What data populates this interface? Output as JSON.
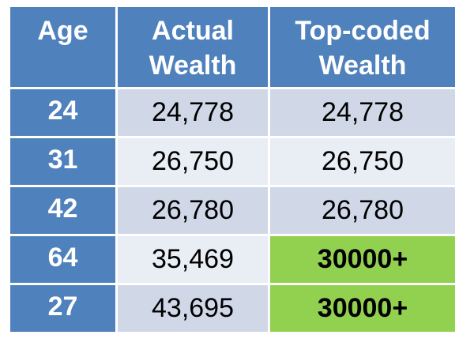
{
  "table": {
    "headers": {
      "age": "Age",
      "actual_line1": "Actual",
      "actual_line2": "Wealth",
      "topcoded_line1": "Top-coded",
      "topcoded_line2": "Wealth"
    },
    "rows": [
      {
        "age": "24",
        "actual": "24,778",
        "topcoded": "24,778"
      },
      {
        "age": "31",
        "actual": "26,750",
        "topcoded": "26,750"
      },
      {
        "age": "42",
        "actual": "26,780",
        "topcoded": "26,780"
      },
      {
        "age": "64",
        "actual": "35,469",
        "topcoded": "30000+"
      },
      {
        "age": "27",
        "actual": "43,695",
        "topcoded": "30000+"
      }
    ],
    "colors": {
      "header_bg": "#4f81bd",
      "row_odd_bg": "#d0d8e8",
      "row_even_bg": "#e9edf4",
      "topcoded_highlight": "#92d050"
    }
  }
}
